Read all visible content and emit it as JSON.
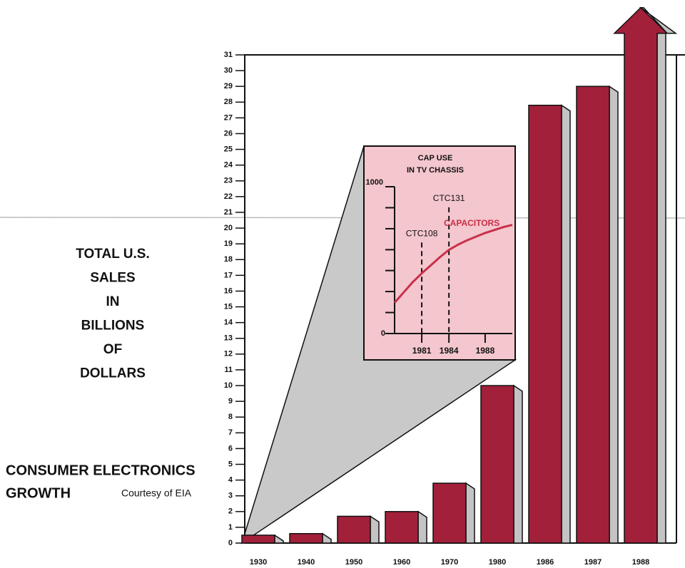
{
  "chart_data": [
    {
      "type": "bar3d",
      "title": [
        "CONSUMER ELECTRONICS",
        "GROWTH"
      ],
      "source": "Courtesy of EIA",
      "ylabel": [
        "TOTAL U.S.",
        "SALES",
        "IN",
        "BILLIONS",
        "OF",
        "DOLLARS"
      ],
      "categories": [
        "1930",
        "1940",
        "1950",
        "1960",
        "1970",
        "1980",
        "1986",
        "1987",
        "1988"
      ],
      "values": [
        0.5,
        0.6,
        1.7,
        2.0,
        3.8,
        10.0,
        27.8,
        29.0,
        34
      ],
      "color": "#a3203a",
      "side_color": "#c4c4c4",
      "ylim": [
        0,
        31
      ],
      "yticks": [
        0,
        1,
        2,
        3,
        4,
        5,
        6,
        7,
        8,
        9,
        10,
        11,
        12,
        13,
        14,
        15,
        16,
        17,
        18,
        19,
        20,
        21,
        22,
        23,
        24,
        25,
        26,
        27,
        28,
        29,
        30,
        31
      ]
    },
    {
      "type": "line",
      "title": [
        "CAP USE",
        "IN TV CHASSIS"
      ],
      "background": "#f4c6cd",
      "xlim": [
        1978,
        1991
      ],
      "xticks": [
        1981,
        1984,
        1988
      ],
      "ylim": [
        0,
        1000
      ],
      "yticks": [
        0,
        1000
      ],
      "minor_yticks": [
        143,
        286,
        429,
        571,
        714,
        857
      ],
      "annotations": [
        {
          "text": "CTC108",
          "x": 1981,
          "y": 620
        },
        {
          "text": "CTC131",
          "x": 1984,
          "y": 860
        }
      ],
      "series": [
        {
          "name": "CAPACITORS",
          "color": "#c8304a",
          "x": [
            1978,
            1979,
            1980,
            1981,
            1982,
            1983,
            1984,
            1985,
            1986,
            1987,
            1988,
            1989,
            1990,
            1991
          ],
          "values": [
            210,
            280,
            350,
            410,
            465,
            520,
            570,
            605,
            635,
            660,
            685,
            705,
            725,
            740
          ]
        }
      ]
    }
  ]
}
